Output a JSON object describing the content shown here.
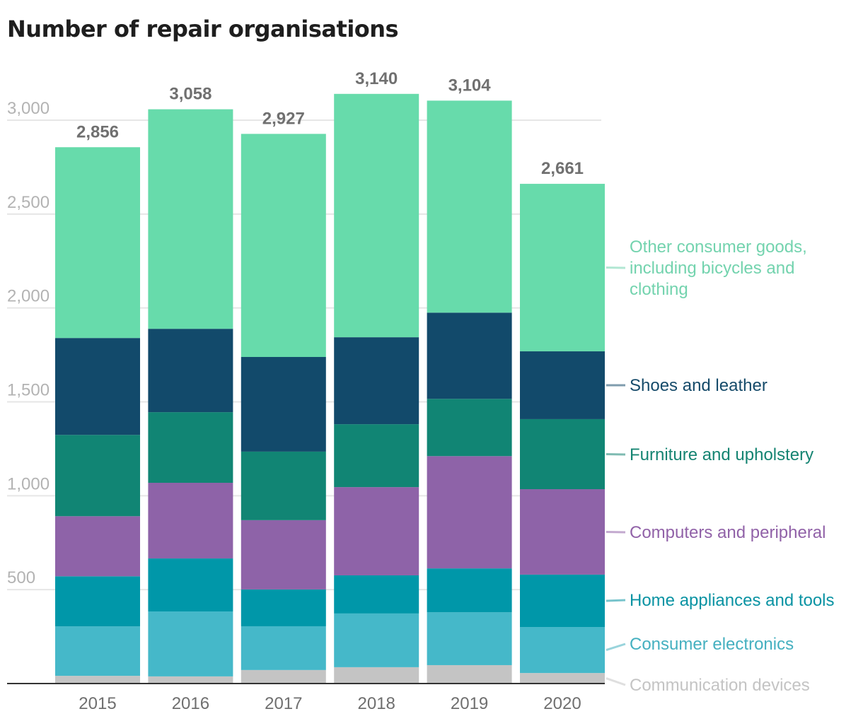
{
  "chart_data": {
    "type": "bar",
    "stacked": true,
    "title": "Number of repair organisations",
    "xlabel": "",
    "ylabel": "",
    "ylim": [
      0,
      3150
    ],
    "yticks": [
      500,
      1000,
      1500,
      2000,
      2500,
      3000
    ],
    "ytick_labels": [
      "500",
      "1,000",
      "1,500",
      "2,000",
      "2,500",
      "3,000"
    ],
    "grid": true,
    "legend_placement": "right (direct labels)",
    "categories": [
      "2015",
      "2016",
      "2017",
      "2018",
      "2019",
      "2020"
    ],
    "totals": [
      2856,
      3058,
      2927,
      3140,
      3104,
      2661
    ],
    "total_labels": [
      "2,856",
      "3,058",
      "2,927",
      "3,140",
      "3,104",
      "2,661"
    ],
    "series": [
      {
        "name": "Communication devices",
        "color": "#c4c4c4",
        "label_color": "#c4c4c4",
        "values": [
          41,
          38,
          72,
          87,
          98,
          56
        ]
      },
      {
        "name": "Consumer electronics",
        "color": "#45b8c9",
        "label_color": "#45b0c0",
        "values": [
          263,
          346,
          233,
          286,
          282,
          245
        ]
      },
      {
        "name": "Home appliances and tools",
        "color": "#0097a9",
        "label_color": "#0a93a3",
        "values": [
          267,
          282,
          196,
          203,
          233,
          279
        ]
      },
      {
        "name": "Computers and peripheral",
        "color": "#8e63a8",
        "label_color": "#9162a8",
        "values": [
          320,
          403,
          369,
          470,
          598,
          455
        ]
      },
      {
        "name": "Furniture and upholstery",
        "color": "#118574",
        "label_color": "#158472",
        "values": [
          433,
          376,
          365,
          335,
          305,
          373
        ]
      },
      {
        "name": "Shoes and leather",
        "color": "#124a6b",
        "label_color": "#164b6a",
        "values": [
          516,
          444,
          504,
          463,
          459,
          361
        ]
      },
      {
        "name": "Other consumer goods, including bicycles and clothing",
        "label_lines": [
          "Other consumer goods,",
          "including bicycles and",
          "clothing"
        ],
        "color": "#67dbab",
        "label_color": "#73d3ae",
        "values": [
          1016,
          1169,
          1188,
          1296,
          1129,
          892
        ]
      }
    ]
  }
}
